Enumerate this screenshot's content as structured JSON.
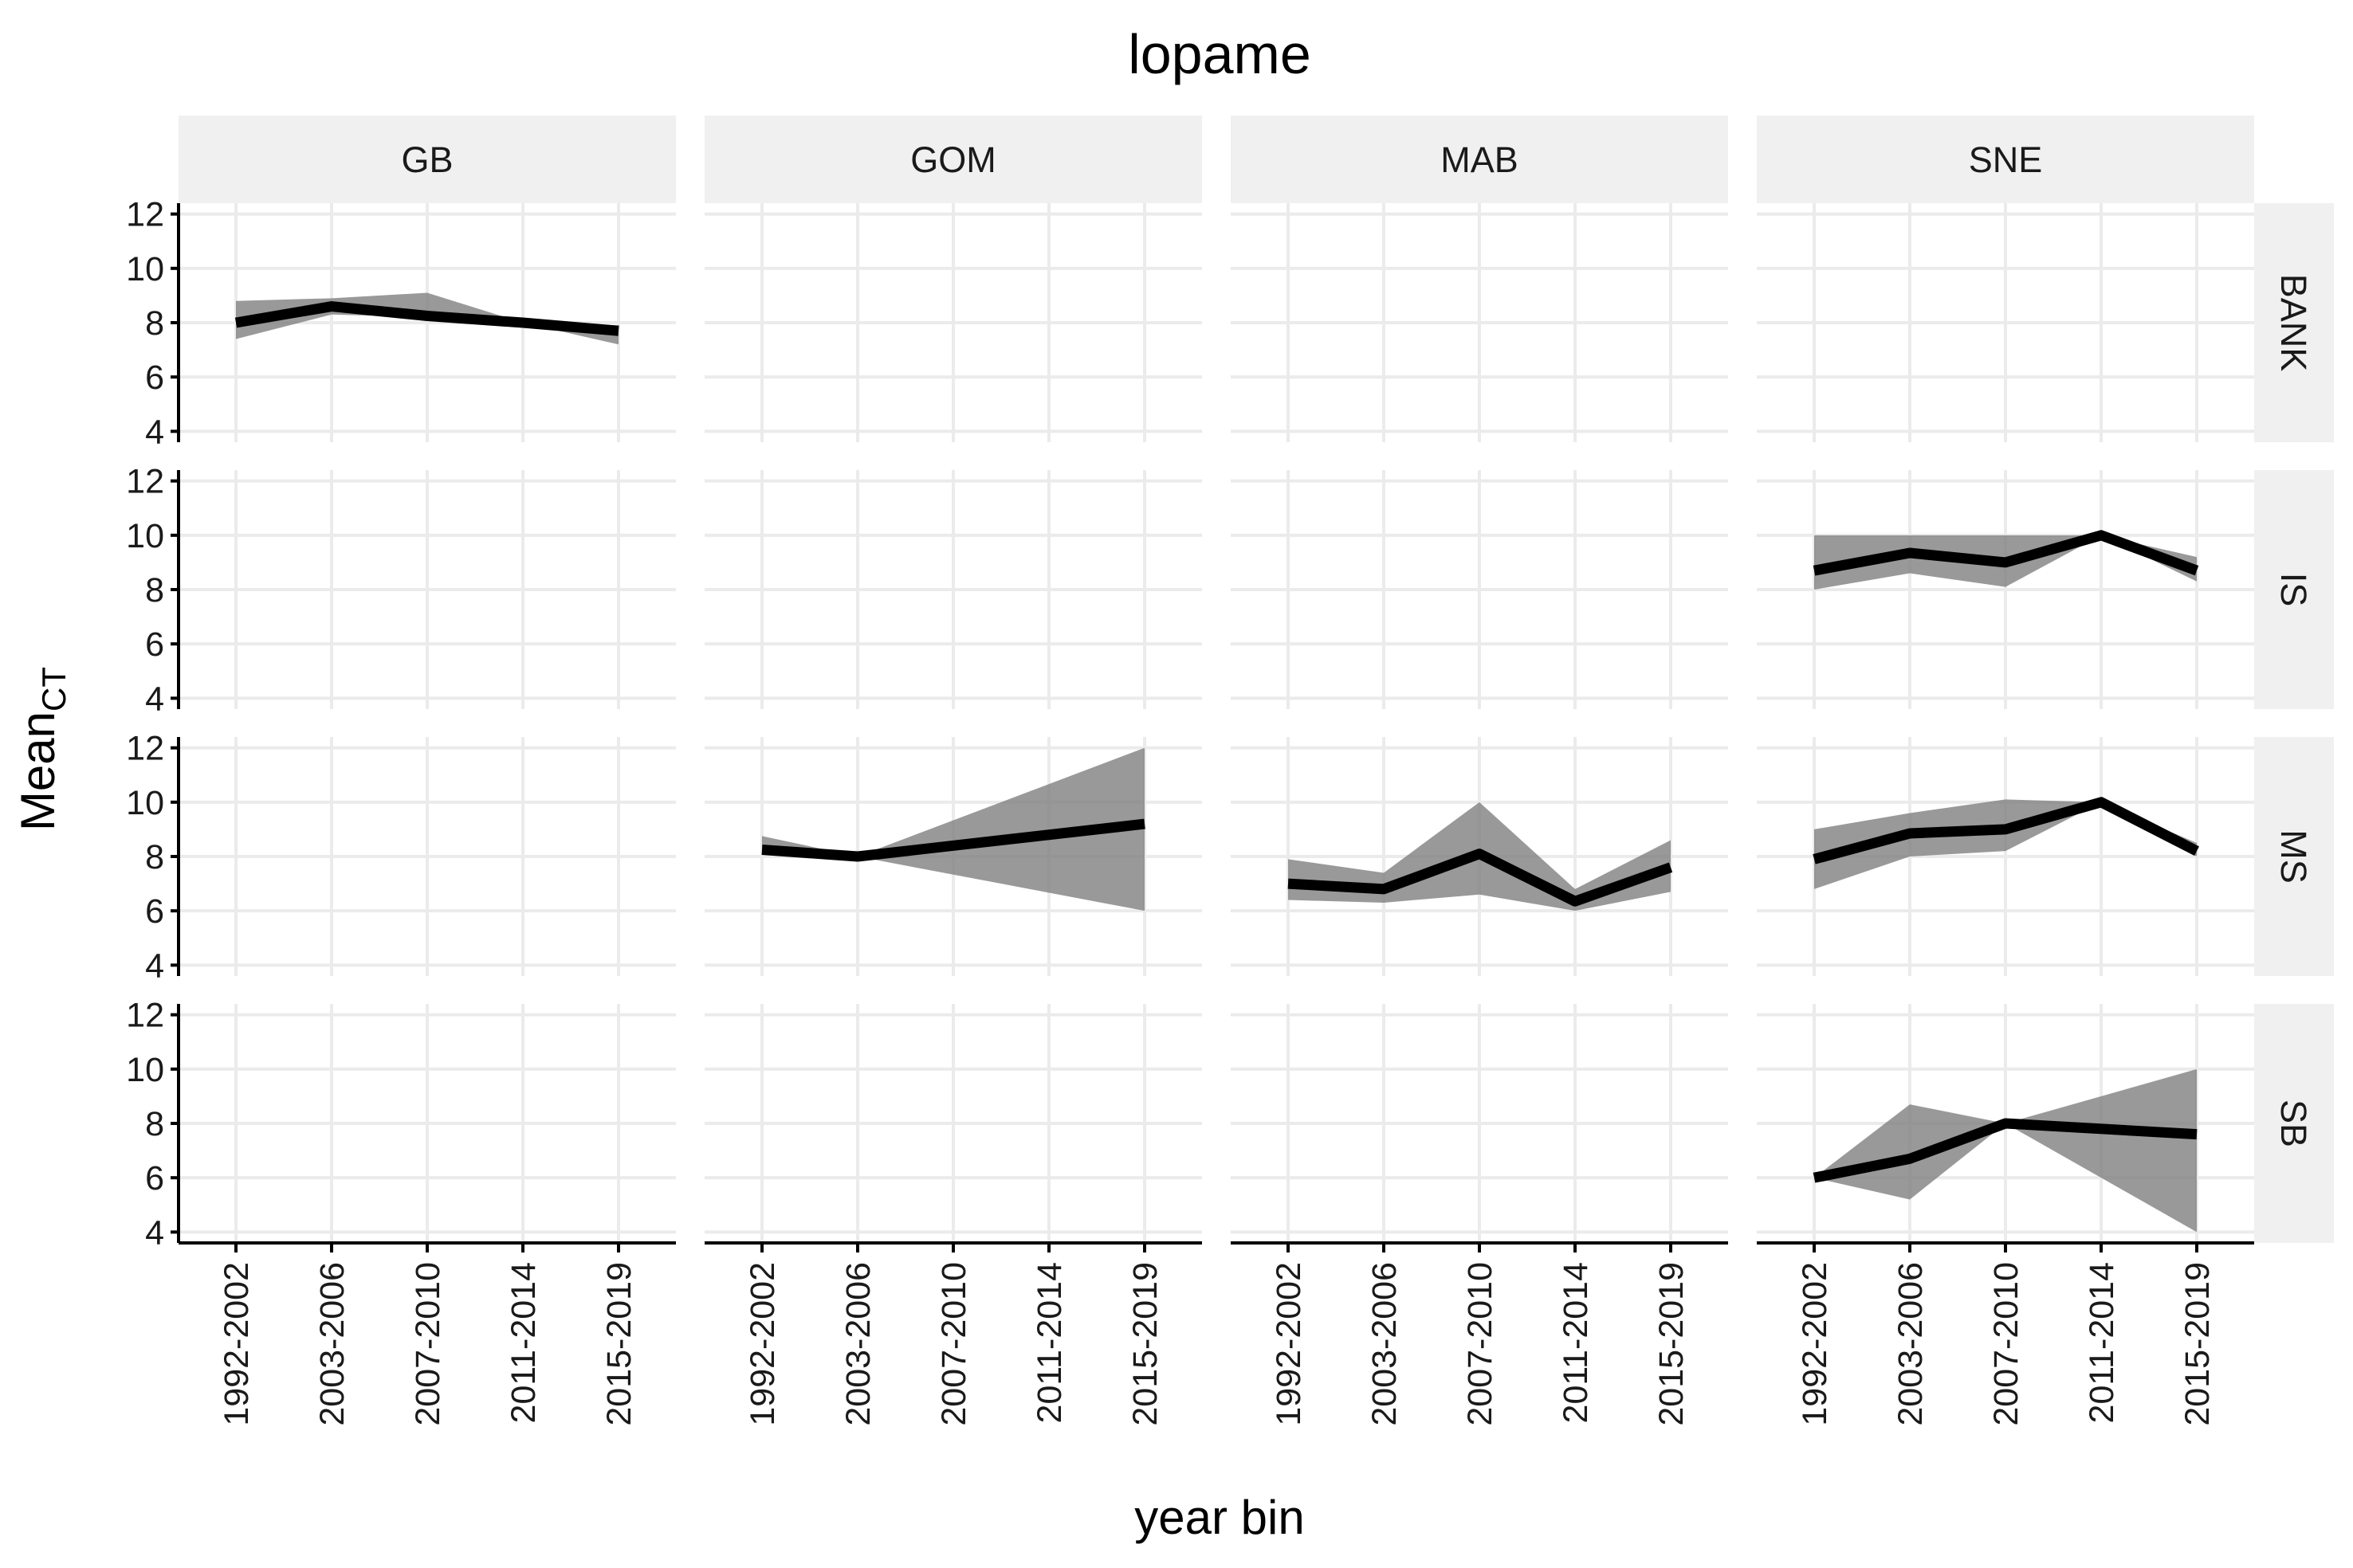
{
  "chart_data": {
    "type": "line",
    "title": "lopame",
    "xlabel": "year bin",
    "ylabel": {
      "base": "Mean",
      "subscript": "CT"
    },
    "x_categories": [
      "1992-2002",
      "2003-2006",
      "2007-2010",
      "2011-2014",
      "2015-2019"
    ],
    "y_ticks": [
      4,
      6,
      8,
      10,
      12
    ],
    "ylim": [
      3.6,
      12.4
    ],
    "grid": true,
    "column_facets": [
      "GB",
      "GOM",
      "MAB",
      "SNE"
    ],
    "row_facets": [
      "BANK",
      "IS",
      "MS",
      "SB"
    ],
    "colors": {
      "line": "#000000",
      "ribbon": "#7f7f7f",
      "strip": "#f0f0f0",
      "grid": "#ebebeb"
    },
    "panels": [
      {
        "column": "GB",
        "row": "BANK",
        "points": [
          {
            "x": "1992-2002",
            "mean": 8.0,
            "low": 7.4,
            "high": 8.8
          },
          {
            "x": "2003-2006",
            "mean": 8.6,
            "low": 8.3,
            "high": 8.9
          },
          {
            "x": "2007-2010",
            "mean": 8.25,
            "low": 8.2,
            "high": 9.1
          },
          {
            "x": "2011-2014",
            "mean": 8.0,
            "low": 8.0,
            "high": 8.0
          },
          {
            "x": "2015-2019",
            "mean": 7.7,
            "low": 7.2,
            "high": 7.9
          }
        ]
      },
      {
        "column": "SNE",
        "row": "IS",
        "points": [
          {
            "x": "1992-2002",
            "mean": 8.7,
            "low": 8.0,
            "high": 10.0
          },
          {
            "x": "2003-2006",
            "mean": 9.35,
            "low": 8.6,
            "high": 10.0
          },
          {
            "x": "2007-2010",
            "mean": 9.0,
            "low": 8.1,
            "high": 10.0
          },
          {
            "x": "2011-2014",
            "mean": 10.0,
            "low": 10.0,
            "high": 10.0
          },
          {
            "x": "2015-2019",
            "mean": 8.7,
            "low": 8.3,
            "high": 9.2
          }
        ]
      },
      {
        "column": "GOM",
        "row": "MS",
        "points": [
          {
            "x": "1992-2002",
            "mean": 8.25,
            "low": 8.1,
            "high": 8.75
          },
          {
            "x": "2003-2006",
            "mean": 8.0,
            "low": 8.0,
            "high": 8.0
          },
          {
            "x": "2015-2019",
            "mean": 9.2,
            "low": 6.0,
            "high": 12.0
          }
        ]
      },
      {
        "column": "MAB",
        "row": "MS",
        "points": [
          {
            "x": "1992-2002",
            "mean": 7.0,
            "low": 6.4,
            "high": 7.9
          },
          {
            "x": "2003-2006",
            "mean": 6.8,
            "low": 6.3,
            "high": 7.4
          },
          {
            "x": "2007-2010",
            "mean": 8.1,
            "low": 6.6,
            "high": 10.0
          },
          {
            "x": "2011-2014",
            "mean": 6.35,
            "low": 6.0,
            "high": 6.8
          },
          {
            "x": "2015-2019",
            "mean": 7.6,
            "low": 6.7,
            "high": 8.6
          }
        ]
      },
      {
        "column": "SNE",
        "row": "MS",
        "points": [
          {
            "x": "1992-2002",
            "mean": 7.9,
            "low": 6.8,
            "high": 9.0
          },
          {
            "x": "2003-2006",
            "mean": 8.85,
            "low": 8.0,
            "high": 9.6
          },
          {
            "x": "2007-2010",
            "mean": 9.0,
            "low": 8.2,
            "high": 10.1
          },
          {
            "x": "2011-2014",
            "mean": 10.0,
            "low": 10.0,
            "high": 10.0
          },
          {
            "x": "2015-2019",
            "mean": 8.2,
            "low": 8.0,
            "high": 8.5
          }
        ]
      },
      {
        "column": "SNE",
        "row": "SB",
        "points": [
          {
            "x": "1992-2002",
            "mean": 6.0,
            "low": 6.0,
            "high": 6.0
          },
          {
            "x": "2003-2006",
            "mean": 6.7,
            "low": 5.2,
            "high": 8.7
          },
          {
            "x": "2007-2010",
            "mean": 8.0,
            "low": 8.0,
            "high": 8.0
          },
          {
            "x": "2015-2019",
            "mean": 7.6,
            "low": 4.0,
            "high": 10.0
          }
        ]
      }
    ]
  }
}
